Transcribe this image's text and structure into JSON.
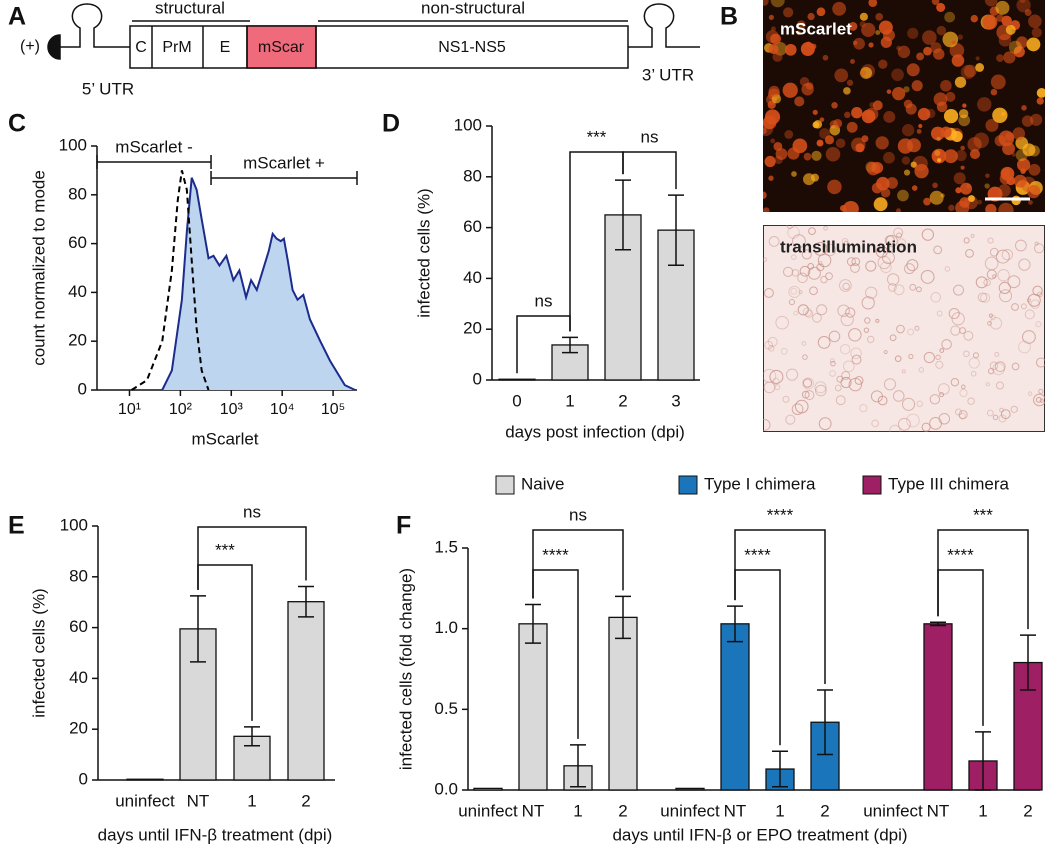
{
  "panel_labels": [
    "A",
    "B",
    "C",
    "D",
    "E",
    "F"
  ],
  "genome": {
    "strand": "(+)",
    "utr5": "5’ UTR",
    "utr3": "3’ UTR",
    "structural": "structural",
    "non_structural": "non-structural",
    "segments": [
      "C",
      "PrM",
      "E",
      "mScar",
      "NS1-NS5"
    ]
  },
  "micrographs": {
    "top": "mScarlet",
    "bottom": "transillumination"
  },
  "chart_data": [
    {
      "type": "area",
      "xlabel": "mScarlet",
      "ylabel": "count normalized to mode",
      "xscale": "log",
      "xlim": [
        2.3,
        295000
      ],
      "xticks": [
        {
          "value": 10,
          "label": "10¹"
        },
        {
          "value": 100,
          "label": "10²"
        },
        {
          "value": 1000,
          "label": "10³"
        },
        {
          "value": 10000,
          "label": "10⁴"
        },
        {
          "value": 100000,
          "label": "10⁵"
        }
      ],
      "ylim": [
        0,
        100
      ],
      "yticks": [
        0,
        20,
        40,
        60,
        80,
        100
      ],
      "gates": [
        {
          "label": "mScarlet -",
          "range": [
            2.3,
            400
          ]
        },
        {
          "label": "mScarlet +",
          "range": [
            400,
            295000
          ]
        }
      ],
      "series": [
        {
          "color": "#bed5f0",
          "line_color": "#1c2c8c",
          "style": "solid",
          "x": [
            44,
            68,
            107,
            134,
            167,
            209,
            262,
            357,
            447,
            585,
            800,
            1100,
            1440,
            1950,
            2450,
            3170,
            4160,
            5450,
            6500,
            7800,
            9400,
            10800,
            12900,
            16000,
            20000,
            26000,
            35000,
            56000,
            87000,
            170000,
            270000
          ],
          "values": [
            0,
            8,
            37,
            65,
            87,
            82,
            70,
            54,
            55,
            51,
            55,
            45,
            49,
            38,
            45,
            41,
            49,
            57,
            64,
            62,
            61,
            62,
            53,
            41,
            37,
            39,
            29,
            20,
            12,
            2,
            0
          ]
        },
        {
          "line_color": "#000000",
          "style": "dashed",
          "x": [
            11,
            22,
            44,
            68,
            89,
            107,
            134,
            167,
            209,
            262,
            357
          ],
          "values": [
            0,
            4,
            20,
            49,
            78,
            90,
            82,
            53,
            25,
            8,
            0
          ]
        }
      ]
    },
    {
      "type": "bar",
      "xlabel": "days post infection (dpi)",
      "ylabel": "infected cells (%)",
      "categories": [
        "0",
        "1",
        "2",
        "3"
      ],
      "values": [
        0.3,
        13.8,
        65,
        59
      ],
      "errors": [
        null,
        3,
        13.7,
        13.8
      ],
      "color": "#d9d9d9",
      "ylim": [
        0,
        100
      ],
      "yticks": [
        0,
        20,
        40,
        60,
        80,
        100
      ],
      "comparisons": [
        "ns",
        "***",
        "ns"
      ]
    },
    {
      "type": "bar",
      "xlabel": "days until IFN-β treatment (dpi)",
      "ylabel": "infected cells (%)",
      "categories": [
        "uninfect",
        "NT",
        "1",
        "2"
      ],
      "values": [
        0.3,
        59.5,
        17.2,
        70.2
      ],
      "errors": [
        null,
        13,
        3.7,
        6
      ],
      "color": "#d9d9d9",
      "ylim": [
        0,
        100
      ],
      "yticks": [
        0,
        20,
        40,
        60,
        80,
        100
      ],
      "comparisons": [
        "***",
        "ns"
      ]
    },
    {
      "type": "grouped_bar",
      "xlabel": "days until IFN-β or EPO treatment (dpi)",
      "ylabel": "infected cells (fold change)",
      "categories": [
        "uninfect",
        "NT",
        "1",
        "2"
      ],
      "legend": "top",
      "ylim": [
        0,
        1.5
      ],
      "yticks": [
        {
          "value": 0,
          "label": "0.0"
        },
        0.5,
        {
          "value": 1,
          "label": "1.0"
        },
        1.5
      ],
      "series": [
        {
          "name": "Naive",
          "color": "#d9d9d9",
          "values": [
            0.01,
            1.03,
            0.15,
            1.07
          ],
          "errors": [
            null,
            0.12,
            0.13,
            0.13
          ],
          "comparisons": [
            "****",
            "ns"
          ]
        },
        {
          "name": "Type I chimera",
          "color": "#1b75bb",
          "values": [
            0.01,
            1.03,
            0.13,
            0.42
          ],
          "errors": [
            null,
            0.11,
            0.11,
            0.2
          ],
          "comparisons": [
            "****",
            "****"
          ]
        },
        {
          "name": "Type III chimera",
          "color": "#9e1f63",
          "values": [
            0,
            1.03,
            0.18,
            0.79
          ],
          "errors": [
            null,
            0.01,
            0.18,
            0.17
          ],
          "comparisons": [
            "****",
            "***"
          ]
        }
      ]
    }
  ]
}
